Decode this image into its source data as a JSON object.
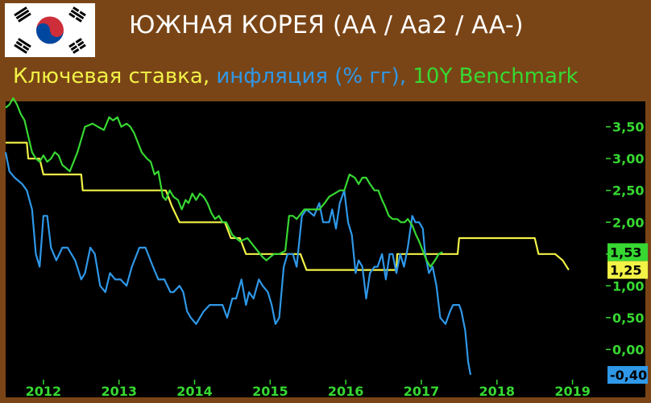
{
  "header": {
    "title": "ЮЖНАЯ КОРЕЯ (AA / Aa2 / AA-)"
  },
  "subtitle": {
    "part1": "Ключевая ставка, ",
    "part2": "инфляция (% гг), ",
    "part3": "10Y Benchmark"
  },
  "colors": {
    "background": "#7a4516",
    "plot": "#000000",
    "policy_rate": "#f2f247",
    "inflation": "#2f98e8",
    "bond_10y": "#37d832",
    "tick_labels": "#37d832"
  },
  "chart_data": {
    "type": "line",
    "title": "",
    "xlabel": "",
    "ylabel": "",
    "xlim": [
      2011.5,
      2019.42
    ],
    "ylim": [
      -0.45,
      3.9
    ],
    "grid": false,
    "y_ticks": [
      "3,50",
      "3,00",
      "2,50",
      "2,00",
      "1,50",
      "1,00",
      "0,50",
      "0,00"
    ],
    "y_tick_values": [
      3.5,
      3.0,
      2.5,
      2.0,
      1.5,
      1.0,
      0.5,
      0.0
    ],
    "x_ticks": [
      "2012",
      "2013",
      "2014",
      "2015",
      "2016",
      "2017",
      "2018",
      "2019"
    ],
    "x_tick_values": [
      2012,
      2013,
      2014,
      2015,
      2016,
      2017,
      2018,
      2019
    ],
    "last_value_labels": [
      {
        "series": "10Y Benchmark",
        "text": "1,53",
        "value": 1.53
      },
      {
        "series": "Ключевая ставка",
        "text": "1,25",
        "value": 1.25
      },
      {
        "series": "инфляция",
        "text": "-0,40",
        "value": -0.4
      }
    ],
    "series": [
      {
        "name": "Ключевая ставка",
        "points": [
          [
            2011.5,
            3.25
          ],
          [
            2011.78,
            3.25
          ],
          [
            2011.8,
            3.0
          ],
          [
            2011.95,
            3.0
          ],
          [
            2012.0,
            2.75
          ],
          [
            2012.5,
            2.75
          ],
          [
            2012.52,
            2.5
          ],
          [
            2013.12,
            2.5
          ],
          [
            2013.62,
            2.5
          ],
          [
            2013.7,
            2.25
          ],
          [
            2013.8,
            2.0
          ],
          [
            2014.4,
            2.0
          ],
          [
            2014.48,
            1.75
          ],
          [
            2014.6,
            1.75
          ],
          [
            2014.68,
            1.5
          ],
          [
            2015.4,
            1.5
          ],
          [
            2015.48,
            1.25
          ],
          [
            2016.67,
            1.25
          ],
          [
            2016.68,
            1.5
          ],
          [
            2017.48,
            1.5
          ],
          [
            2017.5,
            1.75
          ],
          [
            2018.5,
            1.75
          ],
          [
            2018.55,
            1.5
          ],
          [
            2018.75,
            1.5
          ],
          [
            2018.77,
            1.5
          ],
          [
            2018.87,
            1.4
          ],
          [
            2018.95,
            1.25
          ]
        ]
      },
      {
        "name": "инфляция",
        "points": [
          [
            2011.5,
            3.1
          ],
          [
            2011.55,
            2.8
          ],
          [
            2011.62,
            2.7
          ],
          [
            2011.72,
            2.6
          ],
          [
            2011.78,
            2.5
          ],
          [
            2011.85,
            2.2
          ],
          [
            2011.9,
            1.5
          ],
          [
            2011.95,
            1.3
          ],
          [
            2012.0,
            2.1
          ],
          [
            2012.05,
            2.1
          ],
          [
            2012.1,
            1.6
          ],
          [
            2012.17,
            1.4
          ],
          [
            2012.25,
            1.6
          ],
          [
            2012.32,
            1.6
          ],
          [
            2012.42,
            1.4
          ],
          [
            2012.5,
            1.1
          ],
          [
            2012.55,
            1.2
          ],
          [
            2012.62,
            1.6
          ],
          [
            2012.68,
            1.5
          ],
          [
            2012.75,
            1.0
          ],
          [
            2012.82,
            0.9
          ],
          [
            2012.88,
            1.2
          ],
          [
            2012.95,
            1.1
          ],
          [
            2013.02,
            1.1
          ],
          [
            2013.1,
            1.0
          ],
          [
            2013.17,
            1.3
          ],
          [
            2013.27,
            1.6
          ],
          [
            2013.35,
            1.6
          ],
          [
            2013.45,
            1.3
          ],
          [
            2013.52,
            1.1
          ],
          [
            2013.6,
            1.1
          ],
          [
            2013.68,
            0.9
          ],
          [
            2013.72,
            0.9
          ],
          [
            2013.8,
            1.0
          ],
          [
            2013.85,
            0.9
          ],
          [
            2013.9,
            0.6
          ],
          [
            2013.95,
            0.5
          ],
          [
            2014.02,
            0.4
          ],
          [
            2014.12,
            0.6
          ],
          [
            2014.2,
            0.7
          ],
          [
            2014.3,
            0.7
          ],
          [
            2014.37,
            0.7
          ],
          [
            2014.43,
            0.5
          ],
          [
            2014.5,
            0.8
          ],
          [
            2014.55,
            0.8
          ],
          [
            2014.62,
            1.1
          ],
          [
            2014.68,
            0.7
          ],
          [
            2014.72,
            0.9
          ],
          [
            2014.78,
            0.8
          ],
          [
            2014.85,
            1.1
          ],
          [
            2014.9,
            1.0
          ],
          [
            2014.97,
            0.9
          ],
          [
            2015.02,
            0.7
          ],
          [
            2015.07,
            0.4
          ],
          [
            2015.12,
            0.5
          ],
          [
            2015.18,
            1.3
          ],
          [
            2015.23,
            1.5
          ],
          [
            2015.3,
            1.5
          ],
          [
            2015.35,
            1.3
          ],
          [
            2015.42,
            2.1
          ],
          [
            2015.48,
            2.2
          ],
          [
            2015.58,
            2.1
          ],
          [
            2015.65,
            2.3
          ],
          [
            2015.7,
            2.0
          ],
          [
            2015.78,
            2.0
          ],
          [
            2015.82,
            2.2
          ],
          [
            2015.87,
            1.9
          ],
          [
            2015.92,
            2.3
          ],
          [
            2015.98,
            2.5
          ],
          [
            2016.03,
            2.0
          ],
          [
            2016.08,
            1.8
          ],
          [
            2016.13,
            1.2
          ],
          [
            2016.17,
            1.4
          ],
          [
            2016.22,
            1.3
          ],
          [
            2016.27,
            0.8
          ],
          [
            2016.32,
            1.2
          ],
          [
            2016.38,
            1.3
          ],
          [
            2016.42,
            1.3
          ],
          [
            2016.48,
            1.5
          ],
          [
            2016.53,
            1.1
          ],
          [
            2016.58,
            1.5
          ],
          [
            2016.62,
            1.5
          ],
          [
            2016.67,
            1.2
          ],
          [
            2016.72,
            1.5
          ],
          [
            2016.77,
            1.3
          ],
          [
            2016.82,
            1.6
          ],
          [
            2016.88,
            2.1
          ],
          [
            2016.92,
            2.0
          ],
          [
            2016.97,
            2.0
          ],
          [
            2017.02,
            1.9
          ],
          [
            2017.05,
            1.5
          ],
          [
            2017.1,
            1.2
          ],
          [
            2017.15,
            1.3
          ],
          [
            2017.2,
            1.0
          ],
          [
            2017.25,
            0.5
          ],
          [
            2017.32,
            0.4
          ],
          [
            2017.38,
            0.6
          ],
          [
            2017.42,
            0.7
          ],
          [
            2017.5,
            0.7
          ],
          [
            2017.53,
            0.6
          ],
          [
            2017.58,
            0.3
          ],
          [
            2017.62,
            -0.2
          ],
          [
            2017.65,
            -0.4
          ]
        ]
      },
      {
        "name": "10Y Benchmark",
        "points": [
          [
            2011.5,
            3.8
          ],
          [
            2011.55,
            3.85
          ],
          [
            2011.6,
            3.95
          ],
          [
            2011.65,
            3.85
          ],
          [
            2011.7,
            3.7
          ],
          [
            2011.75,
            3.6
          ],
          [
            2011.8,
            3.35
          ],
          [
            2011.85,
            3.1
          ],
          [
            2011.9,
            3.0
          ],
          [
            2011.95,
            2.95
          ],
          [
            2012.0,
            3.05
          ],
          [
            2012.05,
            2.95
          ],
          [
            2012.1,
            3.0
          ],
          [
            2012.15,
            3.1
          ],
          [
            2012.2,
            3.05
          ],
          [
            2012.25,
            2.9
          ],
          [
            2012.3,
            2.85
          ],
          [
            2012.35,
            2.8
          ],
          [
            2012.45,
            3.1
          ],
          [
            2012.55,
            3.5
          ],
          [
            2012.65,
            3.55
          ],
          [
            2012.72,
            3.5
          ],
          [
            2012.8,
            3.45
          ],
          [
            2012.87,
            3.65
          ],
          [
            2012.92,
            3.6
          ],
          [
            2012.98,
            3.65
          ],
          [
            2013.03,
            3.5
          ],
          [
            2013.1,
            3.55
          ],
          [
            2013.15,
            3.5
          ],
          [
            2013.2,
            3.4
          ],
          [
            2013.25,
            3.25
          ],
          [
            2013.3,
            3.1
          ],
          [
            2013.37,
            3.0
          ],
          [
            2013.42,
            2.95
          ],
          [
            2013.47,
            2.75
          ],
          [
            2013.52,
            2.8
          ],
          [
            2013.58,
            2.4
          ],
          [
            2013.62,
            2.35
          ],
          [
            2013.67,
            2.5
          ],
          [
            2013.72,
            2.4
          ],
          [
            2013.78,
            2.35
          ],
          [
            2013.83,
            2.2
          ],
          [
            2013.88,
            2.35
          ],
          [
            2013.92,
            2.3
          ],
          [
            2013.97,
            2.45
          ],
          [
            2014.02,
            2.35
          ],
          [
            2014.07,
            2.45
          ],
          [
            2014.12,
            2.4
          ],
          [
            2014.17,
            2.3
          ],
          [
            2014.22,
            2.15
          ],
          [
            2014.27,
            2.05
          ],
          [
            2014.32,
            2.1
          ],
          [
            2014.37,
            2.0
          ],
          [
            2014.42,
            2.0
          ],
          [
            2014.5,
            1.8
          ],
          [
            2014.6,
            1.7
          ],
          [
            2014.7,
            1.75
          ],
          [
            2014.8,
            1.6
          ],
          [
            2014.9,
            1.45
          ],
          [
            2014.95,
            1.4
          ],
          [
            2015.0,
            1.45
          ],
          [
            2015.05,
            1.5
          ],
          [
            2015.12,
            1.5
          ],
          [
            2015.2,
            1.55
          ],
          [
            2015.25,
            2.1
          ],
          [
            2015.3,
            2.1
          ],
          [
            2015.35,
            2.05
          ],
          [
            2015.45,
            2.2
          ],
          [
            2015.55,
            2.2
          ],
          [
            2015.65,
            2.2
          ],
          [
            2015.72,
            2.3
          ],
          [
            2015.78,
            2.4
          ],
          [
            2015.85,
            2.45
          ],
          [
            2015.92,
            2.5
          ],
          [
            2015.98,
            2.5
          ],
          [
            2016.05,
            2.75
          ],
          [
            2016.12,
            2.7
          ],
          [
            2016.17,
            2.6
          ],
          [
            2016.22,
            2.7
          ],
          [
            2016.27,
            2.7
          ],
          [
            2016.32,
            2.6
          ],
          [
            2016.38,
            2.5
          ],
          [
            2016.43,
            2.5
          ],
          [
            2016.48,
            2.35
          ],
          [
            2016.52,
            2.25
          ],
          [
            2016.57,
            2.1
          ],
          [
            2016.62,
            2.05
          ],
          [
            2016.68,
            2.05
          ],
          [
            2016.73,
            2.0
          ],
          [
            2016.78,
            2.0
          ],
          [
            2016.82,
            2.05
          ],
          [
            2016.88,
            1.95
          ],
          [
            2016.93,
            1.8
          ],
          [
            2016.97,
            1.7
          ],
          [
            2017.02,
            1.55
          ],
          [
            2017.07,
            1.4
          ],
          [
            2017.12,
            1.3
          ],
          [
            2017.18,
            1.4
          ],
          [
            2017.23,
            1.5
          ],
          [
            2017.28,
            1.53
          ]
        ]
      }
    ]
  }
}
